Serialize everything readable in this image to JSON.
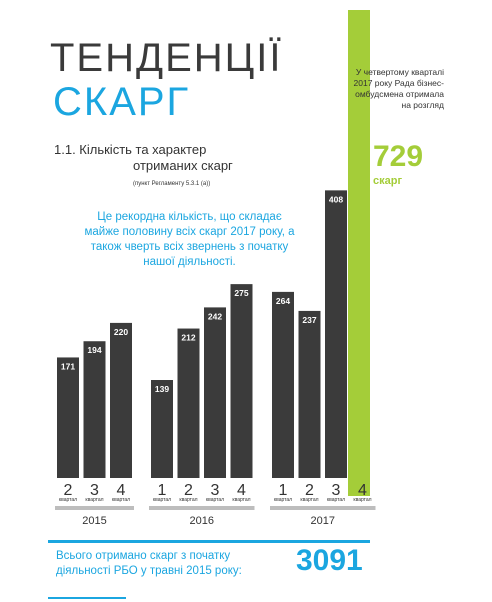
{
  "title": {
    "line1": "ТЕНДЕНЦІЇ",
    "line2": "СКАРГ"
  },
  "section": {
    "heading_line1": "1.1. Кількість та характер",
    "heading_line2": "отриманих скарг",
    "reference": "(пункт Регламенту 5.3.1 (а))"
  },
  "callout": "Це рекордна кількість, що складає майже половину всіх скарг 2017 року, а також чверть всіх звернень з початку нашої діяльності.",
  "side_note": {
    "text": "У четвертому кварталі 2017 року Рада бізнес-омбудсмена отримала на розгляд",
    "number": "729",
    "unit": "скарг"
  },
  "totals": {
    "text": "Всього отримано скарг з початку діяльності РБО у травні 2015 року:",
    "number": "3091"
  },
  "colors": {
    "bar": "#3b3b3b",
    "accent_blue": "#1ba6e0",
    "accent_green": "#a4cd39"
  },
  "chart_data": {
    "type": "bar",
    "quarter_word": "квартал",
    "groups": [
      {
        "year": "2015",
        "quarters": [
          "2",
          "3",
          "4"
        ],
        "values": [
          171,
          194,
          220
        ],
        "highlight": [
          false,
          false,
          false
        ]
      },
      {
        "year": "2016",
        "quarters": [
          "1",
          "2",
          "3",
          "4"
        ],
        "values": [
          139,
          212,
          242,
          275
        ],
        "highlight": [
          false,
          false,
          false,
          false
        ]
      },
      {
        "year": "2017",
        "quarters": [
          "1",
          "2",
          "3",
          "4"
        ],
        "values": [
          264,
          237,
          408,
          729
        ],
        "highlight": [
          false,
          false,
          false,
          true
        ]
      }
    ]
  }
}
